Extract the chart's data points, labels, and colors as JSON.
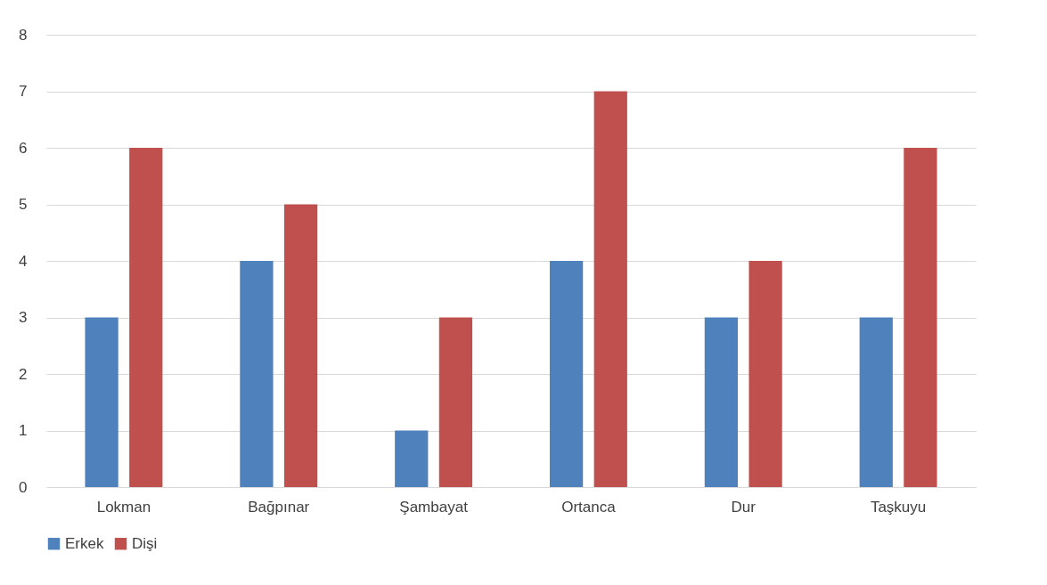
{
  "chart_data": {
    "type": "bar",
    "categories": [
      "Lokman",
      "Bağpınar",
      "Şambayat",
      "Ortanca",
      "Dur",
      "Taşkuyu"
    ],
    "series": [
      {
        "name": "Erkek",
        "color": "#4f81bd",
        "values": [
          3,
          4,
          1,
          4,
          3,
          3
        ]
      },
      {
        "name": "Dişi",
        "color": "#c0504d",
        "values": [
          6,
          5,
          3,
          7,
          4,
          6
        ]
      }
    ],
    "ylim": [
      0,
      8
    ],
    "yticks": [
      0,
      1,
      2,
      3,
      4,
      5,
      6,
      7,
      8
    ],
    "grid": "y",
    "legend": "bottom"
  }
}
